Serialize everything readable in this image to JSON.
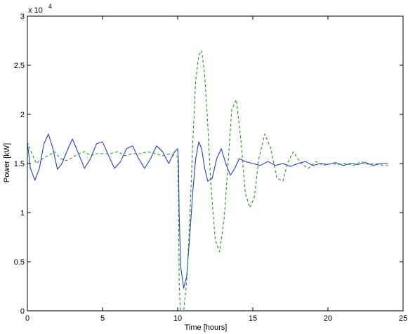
{
  "chart_data": {
    "type": "line",
    "xlabel": "Time [hours]",
    "ylabel": "Power [kW]",
    "exponent_label": "x 10",
    "exponent_power": "4",
    "xlim": [
      0,
      25
    ],
    "ylim": [
      0,
      3
    ],
    "xticks": [
      0,
      5,
      10,
      15,
      20,
      25
    ],
    "xtick_labels": [
      "0",
      "5",
      "10",
      "15",
      "20",
      "25"
    ],
    "yticks": [
      0,
      0.5,
      1,
      1.5,
      2,
      2.5,
      3
    ],
    "ytick_labels": [
      "0",
      "0.5",
      "1",
      "1.5",
      "2",
      "2.5",
      "3"
    ],
    "grid": false,
    "series": [
      {
        "color": "#1f3fd6",
        "style": "solid",
        "x": [
          0,
          0.2,
          0.5,
          0.8,
          1.1,
          1.4,
          1.7,
          2.0,
          2.3,
          2.7,
          3.0,
          3.4,
          3.8,
          4.2,
          4.6,
          5.0,
          5.4,
          5.8,
          6.2,
          6.6,
          7.0,
          7.4,
          7.8,
          8.2,
          8.6,
          9.0,
          9.4,
          9.8,
          10.0,
          10.05,
          10.1,
          10.2,
          10.4,
          10.6,
          10.8,
          11.0,
          11.2,
          11.4,
          11.6,
          11.8,
          12.0,
          12.3,
          12.6,
          12.9,
          13.2,
          13.5,
          13.8,
          14.1,
          14.5,
          15.0,
          15.5,
          16.0,
          16.5,
          17.0,
          17.5,
          18.0,
          18.5,
          19.0,
          19.5,
          20.0,
          20.5,
          21.0,
          21.5,
          22.0,
          22.5,
          23.0,
          23.5,
          24.0
        ],
        "y": [
          1.72,
          1.45,
          1.33,
          1.45,
          1.7,
          1.8,
          1.65,
          1.44,
          1.5,
          1.65,
          1.75,
          1.6,
          1.45,
          1.55,
          1.7,
          1.72,
          1.58,
          1.45,
          1.52,
          1.65,
          1.68,
          1.55,
          1.45,
          1.55,
          1.68,
          1.62,
          1.5,
          1.62,
          1.65,
          1.52,
          1.0,
          0.45,
          0.23,
          0.35,
          0.75,
          1.2,
          1.55,
          1.72,
          1.65,
          1.45,
          1.32,
          1.35,
          1.55,
          1.65,
          1.5,
          1.38,
          1.45,
          1.55,
          1.52,
          1.5,
          1.48,
          1.52,
          1.48,
          1.5,
          1.47,
          1.5,
          1.52,
          1.48,
          1.5,
          1.49,
          1.51,
          1.48,
          1.5,
          1.49,
          1.51,
          1.48,
          1.5,
          1.5
        ]
      },
      {
        "color": "#1a9e1a",
        "style": "dashed",
        "x": [
          0,
          0.3,
          0.6,
          1.0,
          1.4,
          1.8,
          2.2,
          2.6,
          3.0,
          3.4,
          3.8,
          4.2,
          4.6,
          5.0,
          5.5,
          6.0,
          6.5,
          7.0,
          7.5,
          8.0,
          8.5,
          9.0,
          9.5,
          10.0,
          10.05,
          10.1,
          10.2,
          10.4,
          10.6,
          10.8,
          11.0,
          11.2,
          11.4,
          11.6,
          11.8,
          12.0,
          12.2,
          12.5,
          12.8,
          13.1,
          13.4,
          13.6,
          13.9,
          14.2,
          14.5,
          14.8,
          15.1,
          15.4,
          15.8,
          16.2,
          16.6,
          17.0,
          17.3,
          17.7,
          18.2,
          18.7,
          19.2,
          19.7,
          20.2,
          20.7,
          21.2,
          21.7,
          22.2,
          22.7,
          23.2,
          23.7,
          24.0
        ],
        "y": [
          1.72,
          1.6,
          1.5,
          1.55,
          1.58,
          1.62,
          1.55,
          1.53,
          1.56,
          1.6,
          1.62,
          1.58,
          1.6,
          1.6,
          1.6,
          1.62,
          1.58,
          1.6,
          1.6,
          1.62,
          1.6,
          1.58,
          1.6,
          1.57,
          1.2,
          0.3,
          -0.1,
          0.0,
          0.3,
          0.9,
          1.7,
          2.35,
          2.6,
          2.65,
          2.4,
          1.9,
          1.3,
          0.72,
          0.6,
          0.95,
          1.6,
          2.05,
          2.15,
          1.75,
          1.2,
          1.05,
          1.15,
          1.55,
          1.8,
          1.65,
          1.35,
          1.32,
          1.5,
          1.62,
          1.5,
          1.45,
          1.52,
          1.48,
          1.5,
          1.49,
          1.5,
          1.48,
          1.52,
          1.49,
          1.5,
          1.48,
          1.48
        ]
      }
    ]
  }
}
